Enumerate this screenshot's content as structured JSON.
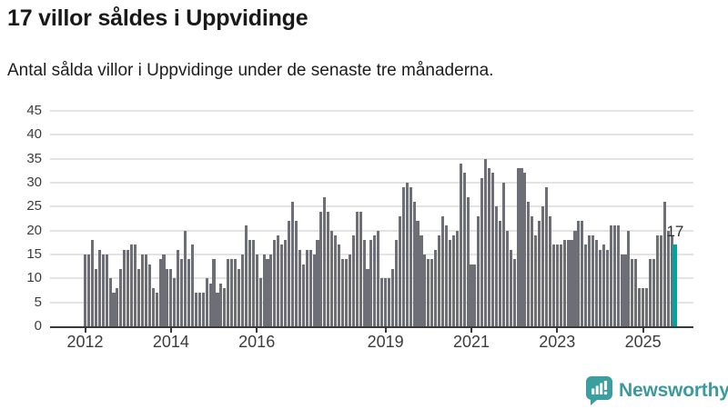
{
  "header": {
    "title": "17 villor såldes i Uppvidinge",
    "subtitle": "Antal sålda villor i Uppvidinge under de senaste tre månaderna."
  },
  "chart_data": {
    "type": "bar",
    "title": "17 villor såldes i Uppvidinge",
    "xlabel": "",
    "ylabel": "",
    "x_start": "2012-01",
    "x_interval": "monthly",
    "ylim": [
      0,
      45
    ],
    "grid": true,
    "legend": false,
    "yticks": [
      0,
      5,
      10,
      15,
      20,
      25,
      30,
      35,
      40,
      45
    ],
    "xticks": [
      {
        "label": "2012",
        "month_index": 0
      },
      {
        "label": "2014",
        "month_index": 24
      },
      {
        "label": "2016",
        "month_index": 48
      },
      {
        "label": "2019",
        "month_index": 84
      },
      {
        "label": "2021",
        "month_index": 108
      },
      {
        "label": "2023",
        "month_index": 132
      },
      {
        "label": "2025",
        "month_index": 156
      }
    ],
    "values": [
      15,
      15,
      18,
      12,
      16,
      15,
      15,
      10,
      7,
      8,
      12,
      16,
      16,
      17,
      17,
      12,
      15,
      15,
      13,
      8,
      7,
      14,
      15,
      12,
      12,
      10,
      16,
      14,
      20,
      14,
      17,
      7,
      7,
      7,
      10,
      9,
      14,
      7,
      9,
      8,
      14,
      14,
      14,
      12,
      15,
      21,
      18,
      18,
      15,
      10,
      15,
      14,
      15,
      18,
      19,
      17,
      18,
      22,
      26,
      22,
      16,
      13,
      16,
      16,
      15,
      18,
      24,
      27,
      24,
      20,
      19,
      17,
      14,
      14,
      15,
      19,
      24,
      24,
      18,
      12,
      18,
      19,
      20,
      10,
      10,
      10,
      12,
      18,
      23,
      29,
      30,
      29,
      26,
      22,
      19,
      15,
      14,
      14,
      16,
      19,
      23,
      21,
      18,
      19,
      20,
      34,
      32,
      27,
      13,
      13,
      23,
      31,
      35,
      33,
      32,
      25,
      22,
      30,
      20,
      16,
      14,
      33,
      33,
      32,
      26,
      23,
      19,
      22,
      25,
      29,
      23,
      17,
      17,
      17,
      18,
      18,
      18,
      20,
      22,
      22,
      17,
      19,
      19,
      18,
      16,
      17,
      16,
      21,
      21,
      21,
      15,
      15,
      20,
      14,
      14,
      8,
      8,
      8,
      14,
      14,
      19,
      19,
      26,
      20,
      19,
      17
    ],
    "highlight_index": 165,
    "bar_color": "#6e6e76",
    "highlight_color": "#00a3a4",
    "annotation": {
      "label": "17"
    }
  },
  "logo": {
    "text": "Newsworthy",
    "icon": "newsworthy-bar-chart-bubble-icon",
    "color": "#3a9a9d"
  }
}
